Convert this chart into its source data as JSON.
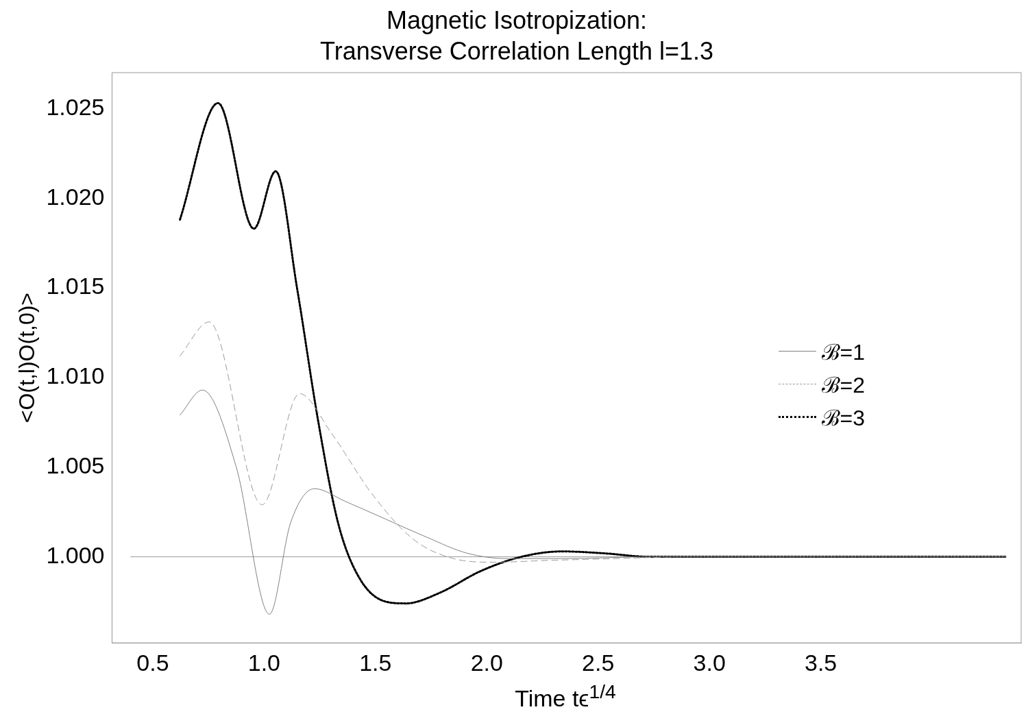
{
  "chart_data": {
    "type": "line",
    "title": "Magnetic Isotropization:\nTransverse Correlation Length l=1.3",
    "xlabel": "Time tϵ$^{1/4}$",
    "ylabel": "<O(t,l)O(t,0)>",
    "xlim": [
      0.317,
      4.4
    ],
    "ylim": [
      0.9952,
      1.027
    ],
    "xticks": [
      {
        "value": 0.5,
        "label": "0.5"
      },
      {
        "value": 1,
        "label": "1.0"
      },
      {
        "value": 1.5,
        "label": "1.5"
      },
      {
        "value": 2,
        "label": "2.0"
      },
      {
        "value": 2.5,
        "label": "2.5"
      },
      {
        "value": 3,
        "label": "3.0"
      },
      {
        "value": 3.5,
        "label": "3.5"
      }
    ],
    "yticks": [
      {
        "value": 1,
        "label": "1.000"
      },
      {
        "value": 1.005,
        "label": "1.005"
      },
      {
        "value": 1.01,
        "label": "1.010"
      },
      {
        "value": 1.015,
        "label": "1.015"
      },
      {
        "value": 1.02,
        "label": "1.020"
      },
      {
        "value": 1.025,
        "label": "1.025"
      }
    ],
    "grid": false,
    "legend": "right",
    "ref_lines": [
      {
        "axis": "y",
        "value": 1,
        "color": "#999999"
      }
    ],
    "series": [
      {
        "name": "ℬ=1",
        "color": "#808080",
        "line_style": "solid",
        "x": [
          0.622,
          0.723,
          0.875,
          1.024,
          1.119,
          1.226,
          1.363,
          1.546,
          1.729,
          1.912,
          2.095,
          2.338,
          2.735,
          3.2,
          4.33
        ],
        "values": [
          1.0079,
          1.0093,
          1.005,
          0.9968,
          1.0019,
          1.0038,
          1.0031,
          1.0021,
          1.0011,
          1.0002,
          0.9999,
          0.9999,
          1.0,
          1.0,
          1.0
        ]
      },
      {
        "name": "ℬ=2",
        "color": "#999999",
        "line_style": "dashed",
        "x": [
          0.622,
          0.753,
          0.991,
          1.159,
          1.302,
          1.485,
          1.668,
          1.851,
          2.034,
          2.278,
          2.58,
          2.89,
          3.2,
          4.33
        ],
        "values": [
          1.0112,
          1.0131,
          1.0029,
          1.0091,
          1.0069,
          1.0035,
          1.001,
          0.9999,
          0.9997,
          0.9998,
          0.9999,
          1.0,
          1.0,
          1.0
        ]
      },
      {
        "name": "ℬ=3",
        "color": "#000000",
        "line_style": "dotted",
        "x": [
          0.622,
          0.793,
          0.954,
          1.052,
          1.149,
          1.241,
          1.332,
          1.424,
          1.546,
          1.637,
          1.79,
          1.972,
          2.155,
          2.338,
          2.52,
          2.735,
          2.887,
          3.19,
          4.33
        ],
        "values": [
          1.0188,
          1.0253,
          1.0183,
          1.0215,
          1.0149,
          1.0077,
          1.0019,
          0.9989,
          0.9975,
          0.9974,
          0.998,
          0.9992,
          1.0,
          1.0003,
          1.0002,
          1.0,
          1.0,
          1.0,
          1.0
        ]
      }
    ]
  }
}
